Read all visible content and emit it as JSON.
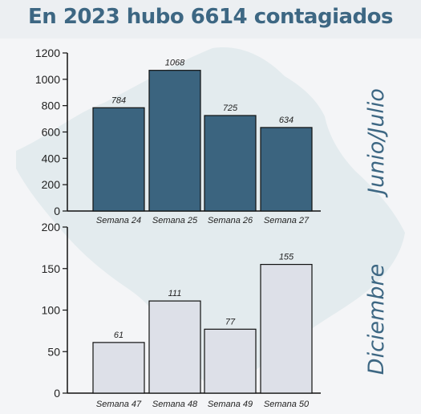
{
  "title": "En 2023 hubo 6614 contagiados",
  "colors": {
    "title": "#3d6783",
    "top_bar": "#3b647f",
    "bottom_bar": "#dde0e8",
    "bar_stroke": "#111111",
    "map": "#e3ebee",
    "side_label": "#3d6783"
  },
  "chart_data": [
    {
      "type": "bar",
      "title": "",
      "period_label": "Junio/Julio",
      "categories": [
        "Semana 24",
        "Semana 25",
        "Semana 26",
        "Semana 27"
      ],
      "values": [
        784,
        1068,
        725,
        634
      ],
      "ylim": [
        0,
        1200
      ],
      "yticks": [
        0,
        200,
        400,
        600,
        800,
        1000,
        1200
      ],
      "xlabel": "",
      "ylabel": ""
    },
    {
      "type": "bar",
      "title": "",
      "period_label": "Diciembre",
      "categories": [
        "Semana 47",
        "Semana 48",
        "Semana 49",
        "Semana 50"
      ],
      "values": [
        61,
        111,
        77,
        155
      ],
      "ylim": [
        0,
        200
      ],
      "yticks": [
        0,
        50,
        100,
        150,
        200
      ],
      "xlabel": "",
      "ylabel": ""
    }
  ]
}
